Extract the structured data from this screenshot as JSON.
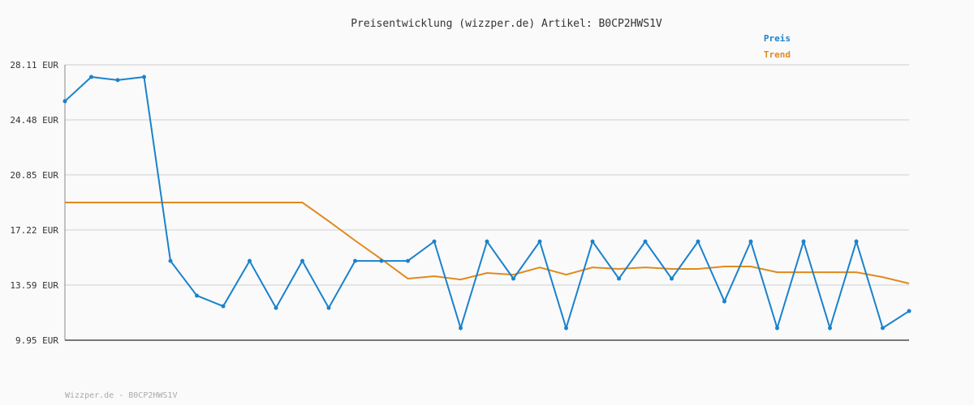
{
  "chart_data": {
    "type": "line",
    "title": "Preisentwicklung (wizzper.de) Artikel: B0CP2HWS1V",
    "footer": "Wizzper.de - B0CP2HWS1V",
    "ylim": [
      9.95,
      28.11
    ],
    "yticks": [
      "28.11 EUR",
      "24.48 EUR",
      "20.85 EUR",
      "17.22 EUR",
      "13.59 EUR",
      "9.95 EUR"
    ],
    "ytick_values": [
      28.11,
      24.48,
      20.85,
      17.22,
      13.59,
      9.95
    ],
    "grid": true,
    "legend_position": "top-right",
    "series": [
      {
        "name": "Preis",
        "color": "#1a82cc",
        "markers": true,
        "values": [
          25.71,
          27.31,
          27.1,
          27.31,
          15.18,
          12.89,
          12.19,
          15.18,
          12.08,
          15.18,
          12.08,
          15.18,
          15.18,
          15.18,
          16.46,
          10.75,
          16.46,
          14.01,
          16.46,
          10.75,
          16.46,
          14.01,
          16.46,
          14.01,
          16.46,
          12.51,
          16.46,
          10.75,
          16.46,
          10.75,
          16.46,
          10.75,
          11.87
        ]
      },
      {
        "name": "Trend",
        "color": "#e08a1e",
        "markers": false,
        "values": [
          19.03,
          19.03,
          19.03,
          19.03,
          19.03,
          19.03,
          19.03,
          19.03,
          19.03,
          19.03,
          17.8,
          16.52,
          15.29,
          14.01,
          14.17,
          13.95,
          14.38,
          14.27,
          14.75,
          14.27,
          14.75,
          14.65,
          14.75,
          14.65,
          14.65,
          14.81,
          14.81,
          14.43,
          14.43,
          14.43,
          14.43,
          14.11,
          13.69
        ]
      }
    ]
  }
}
